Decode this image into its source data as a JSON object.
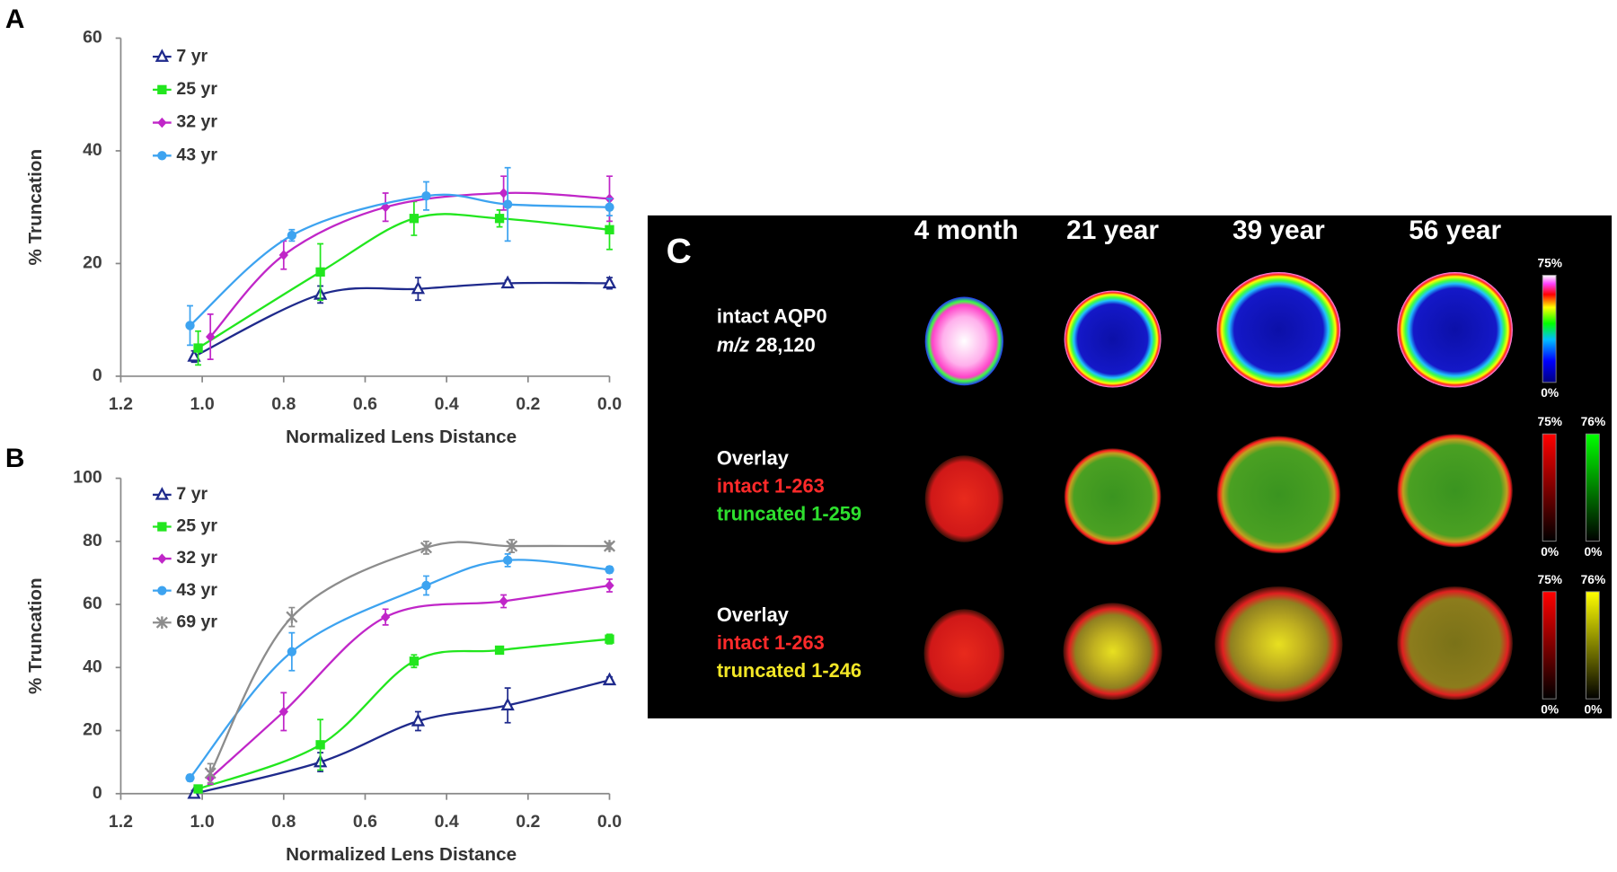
{
  "chart_data": [
    {
      "type": "line",
      "panel_label": "A",
      "ylabel": "% Truncation",
      "xlabel": "Normalized Lens Distance",
      "xlim": [
        1.2,
        0
      ],
      "xticks": [
        1.2,
        {
          "value": 1,
          "label": "1.0"
        },
        0.8,
        0.6,
        0.4,
        0.2,
        {
          "value": 0,
          "label": "0.0"
        }
      ],
      "ylim": [
        0,
        60
      ],
      "yticks": [
        0,
        20,
        40,
        60
      ],
      "legend": "top-left",
      "grid": false,
      "series": [
        {
          "name": "7 yr",
          "color": "#1f2a8c",
          "marker": "triangle",
          "x": [
            1.02,
            0.71,
            0.47,
            0.25,
            0
          ],
          "values": [
            3.5,
            14.5,
            15.5,
            16.5,
            16.5
          ],
          "errors": [
            1,
            1.5,
            2,
            0.5,
            1
          ]
        },
        {
          "name": "25 yr",
          "color": "#22e61e",
          "marker": "square",
          "x": [
            1.01,
            0.71,
            0.48,
            0.27,
            0
          ],
          "values": [
            5,
            18.5,
            28,
            28,
            26
          ],
          "errors": [
            3,
            5,
            3,
            1.5,
            3.5
          ]
        },
        {
          "name": "32 yr",
          "color": "#c026c8",
          "marker": "diamond",
          "x": [
            0.98,
            0.8,
            0.55,
            0.26,
            0
          ],
          "values": [
            7,
            21.5,
            30,
            32.5,
            31.5
          ],
          "errors": [
            4,
            2.5,
            2.5,
            3,
            4
          ]
        },
        {
          "name": "43 yr",
          "color": "#3da3f0",
          "marker": "circle",
          "x": [
            1.03,
            0.78,
            0.45,
            0.25,
            0
          ],
          "values": [
            9,
            25,
            32,
            30.5,
            30
          ],
          "errors": [
            3.5,
            1,
            2.5,
            6.5,
            1.5
          ]
        }
      ]
    },
    {
      "type": "line",
      "panel_label": "B",
      "ylabel": "% Truncation",
      "xlabel": "Normalized Lens Distance",
      "xlim": [
        1.2,
        0
      ],
      "xticks": [
        1.2,
        {
          "value": 1,
          "label": "1.0"
        },
        0.8,
        0.6,
        0.4,
        0.2,
        {
          "value": 0,
          "label": "0.0"
        }
      ],
      "ylim": [
        0,
        100
      ],
      "yticks": [
        0,
        20,
        40,
        60,
        80,
        100
      ],
      "legend": "top-left",
      "grid": false,
      "series": [
        {
          "name": "7 yr",
          "color": "#1f2a8c",
          "marker": "triangle",
          "x": [
            1.02,
            0.71,
            0.47,
            0.25,
            0
          ],
          "values": [
            0,
            10,
            23,
            28,
            36
          ],
          "errors": [
            1,
            3,
            3,
            5.5,
            1
          ]
        },
        {
          "name": "25 yr",
          "color": "#22e61e",
          "marker": "square",
          "x": [
            1.01,
            0.71,
            0.48,
            0.27,
            0
          ],
          "values": [
            1.5,
            15.5,
            42,
            45.5,
            49
          ],
          "errors": [
            1,
            8,
            2,
            1,
            1.5
          ]
        },
        {
          "name": "32 yr",
          "color": "#c026c8",
          "marker": "diamond",
          "x": [
            0.98,
            0.8,
            0.55,
            0.26,
            0
          ],
          "values": [
            5,
            26,
            56,
            61,
            66
          ],
          "errors": [
            2,
            6,
            2.5,
            2,
            2
          ]
        },
        {
          "name": "43 yr",
          "color": "#3da3f0",
          "marker": "circle",
          "x": [
            1.03,
            0.78,
            0.45,
            0.25,
            0
          ],
          "values": [
            5,
            45,
            66,
            74,
            71
          ],
          "errors": [
            1,
            6,
            3,
            2,
            1
          ]
        },
        {
          "name": "69 yr",
          "color": "#8c8c8c",
          "marker": "star",
          "x": [
            0.98,
            0.78,
            0.45,
            0.24,
            0
          ],
          "values": [
            6.5,
            56,
            78,
            78.5,
            78.5
          ],
          "errors": [
            3,
            3,
            2,
            2,
            1
          ]
        }
      ]
    }
  ],
  "panel_c": {
    "letter": "C",
    "columns": [
      "4 month",
      "21 year",
      "39 year",
      "56 year"
    ],
    "rows": [
      {
        "label": [
          {
            "text": "intact AQP0",
            "color": "#ffffff"
          },
          {
            "italic": "m/z",
            "text": "28,120",
            "color": "#ffffff"
          }
        ],
        "scales": [
          {
            "top": "75%",
            "bottom": "0%"
          }
        ]
      },
      {
        "label": [
          {
            "text": "Overlay",
            "color": "#ffffff"
          },
          {
            "text": "intact 1-263",
            "color": "#ff2a2a"
          },
          {
            "text": "truncated 1-259",
            "color": "#2ee02e"
          }
        ],
        "scales": [
          {
            "top": "75%",
            "bottom": "0%"
          },
          {
            "top": "76%",
            "bottom": "0%"
          }
        ]
      },
      {
        "label": [
          {
            "text": "Overlay",
            "color": "#ffffff"
          },
          {
            "text": "intact 1-263",
            "color": "#ff2a2a"
          },
          {
            "text": "truncated 1-246",
            "color": "#f2e626"
          }
        ],
        "scales": [
          {
            "top": "75%",
            "bottom": "0%"
          },
          {
            "top": "76%",
            "bottom": "0%"
          }
        ]
      }
    ]
  }
}
